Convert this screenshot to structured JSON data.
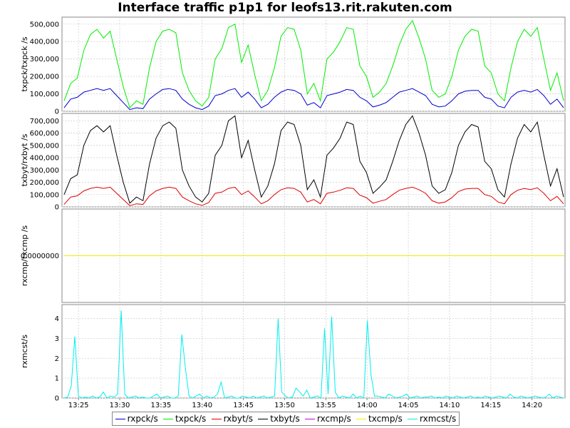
{
  "title": "Interface traffic p1p1 for leofs13.rit.rakuten.com",
  "legend": [
    {
      "name": "rxpck/s",
      "color": "#0000cc"
    },
    {
      "name": "txpck/s",
      "color": "#00ee00"
    },
    {
      "name": "rxbyt/s",
      "color": "#dd0000"
    },
    {
      "name": "txbyt/s",
      "color": "#000000"
    },
    {
      "name": "rxcmp/s",
      "color": "#cc00cc"
    },
    {
      "name": "txcmp/s",
      "color": "#eeee00"
    },
    {
      "name": "rxmcst/s",
      "color": "#00eeee"
    }
  ],
  "chart_data": {
    "type": "line",
    "x_ticks": [
      "13:25",
      "13:30",
      "13:35",
      "13:40",
      "13:45",
      "13:50",
      "13:55",
      "14:00",
      "14:05",
      "14:10",
      "14:15",
      "14:20"
    ],
    "x_range": [
      "13:23",
      "14:24"
    ],
    "grid": true,
    "legend_position": "bottom",
    "panels": [
      {
        "ylabel": "txpck/txpck /s",
        "ylim": [
          0,
          540000
        ],
        "y_ticks": [
          "0",
          "100,000",
          "200,000",
          "300,000",
          "400,000",
          "500,000"
        ],
        "y_tick_values": [
          0,
          100000,
          200000,
          300000,
          400000,
          500000
        ],
        "series": [
          {
            "name": "txpck/s",
            "color": "#00ee00",
            "values": [
              60000,
              160000,
              190000,
              350000,
              440000,
              470000,
              420000,
              460000,
              300000,
              140000,
              20000,
              60000,
              40000,
              250000,
              400000,
              460000,
              470000,
              450000,
              220000,
              120000,
              60000,
              30000,
              80000,
              300000,
              360000,
              480000,
              500000,
              280000,
              380000,
              210000,
              60000,
              120000,
              250000,
              430000,
              480000,
              470000,
              350000,
              100000,
              160000,
              60000,
              300000,
              340000,
              400000,
              480000,
              470000,
              260000,
              200000,
              80000,
              110000,
              160000,
              260000,
              380000,
              470000,
              520000,
              420000,
              300000,
              120000,
              80000,
              100000,
              200000,
              350000,
              430000,
              470000,
              460000,
              260000,
              220000,
              100000,
              60000,
              250000,
              400000,
              470000,
              430000,
              480000,
              300000,
              120000,
              220000,
              60000
            ]
          },
          {
            "name": "rxpck/s",
            "color": "#0000cc",
            "values": [
              20000,
              70000,
              80000,
              110000,
              120000,
              130000,
              120000,
              130000,
              90000,
              50000,
              10000,
              20000,
              15000,
              70000,
              100000,
              125000,
              130000,
              120000,
              70000,
              40000,
              20000,
              10000,
              30000,
              90000,
              100000,
              120000,
              130000,
              80000,
              110000,
              70000,
              20000,
              40000,
              80000,
              110000,
              125000,
              120000,
              100000,
              35000,
              50000,
              20000,
              90000,
              100000,
              110000,
              125000,
              120000,
              80000,
              60000,
              25000,
              35000,
              50000,
              80000,
              110000,
              120000,
              130000,
              110000,
              90000,
              40000,
              25000,
              30000,
              60000,
              100000,
              115000,
              120000,
              120000,
              80000,
              70000,
              30000,
              20000,
              80000,
              110000,
              120000,
              110000,
              125000,
              90000,
              40000,
              70000,
              20000
            ]
          }
        ]
      },
      {
        "ylabel": "txbyt/rxbyt /s",
        "ylim": [
          0,
          760000
        ],
        "y_ticks": [
          "0",
          "100,000",
          "200,000",
          "300,000",
          "400,000",
          "500,000",
          "600,000",
          "700,000"
        ],
        "y_tick_values": [
          0,
          100000,
          200000,
          300000,
          400000,
          500000,
          600000,
          700000
        ],
        "series": [
          {
            "name": "txbyt/s",
            "color": "#000000",
            "values": [
              100000,
              230000,
              260000,
              500000,
              620000,
              660000,
              610000,
              660000,
              420000,
              200000,
              30000,
              80000,
              50000,
              350000,
              560000,
              660000,
              690000,
              640000,
              300000,
              170000,
              80000,
              40000,
              110000,
              420000,
              500000,
              700000,
              740000,
              400000,
              540000,
              300000,
              80000,
              170000,
              350000,
              620000,
              690000,
              670000,
              500000,
              140000,
              220000,
              80000,
              420000,
              480000,
              560000,
              690000,
              670000,
              370000,
              280000,
              110000,
              160000,
              220000,
              370000,
              540000,
              670000,
              740000,
              600000,
              420000,
              170000,
              110000,
              140000,
              280000,
              500000,
              610000,
              670000,
              650000,
              370000,
              310000,
              140000,
              80000,
              350000,
              560000,
              670000,
              610000,
              690000,
              420000,
              170000,
              310000,
              80000
            ]
          },
          {
            "name": "rxbyt/s",
            "color": "#dd0000",
            "values": [
              20000,
              80000,
              90000,
              130000,
              150000,
              160000,
              150000,
              160000,
              110000,
              60000,
              10000,
              25000,
              20000,
              90000,
              130000,
              150000,
              160000,
              150000,
              80000,
              50000,
              25000,
              12000,
              35000,
              110000,
              120000,
              150000,
              160000,
              100000,
              130000,
              80000,
              25000,
              50000,
              100000,
              140000,
              155000,
              150000,
              120000,
              40000,
              60000,
              25000,
              110000,
              120000,
              135000,
              155000,
              150000,
              95000,
              75000,
              30000,
              45000,
              60000,
              100000,
              135000,
              150000,
              160000,
              140000,
              110000,
              50000,
              30000,
              40000,
              75000,
              125000,
              145000,
              150000,
              150000,
              100000,
              85000,
              40000,
              25000,
              100000,
              135000,
              150000,
              140000,
              155000,
              110000,
              50000,
              85000,
              25000
            ]
          }
        ]
      },
      {
        "ylabel": "rxcmp/txcmp /s",
        "ylim": [
          -1,
          1
        ],
        "y_ticks": [
          "0.0000000"
        ],
        "y_tick_values": [
          0
        ],
        "series": [
          {
            "name": "rxcmp/s",
            "color": "#cc00cc",
            "values": [
              0,
              0
            ]
          },
          {
            "name": "txcmp/s",
            "color": "#eeee00",
            "values": [
              0,
              0
            ]
          }
        ]
      },
      {
        "ylabel": "rxmcst/s",
        "ylim": [
          0,
          4.7
        ],
        "y_ticks": [
          "0",
          "1",
          "2",
          "3",
          "4"
        ],
        "y_tick_values": [
          0,
          1,
          2,
          3,
          4
        ],
        "series": [
          {
            "name": "rxmcst/s",
            "color": "#00eeee",
            "values": [
              0,
              0.05,
              0.6,
              3.1,
              0.1,
              0,
              0.05,
              0,
              0.1,
              0,
              0.05,
              0.3,
              0,
              0.1,
              0.05,
              0.2,
              4.4,
              0.2,
              0,
              0.05,
              0.1,
              0,
              0.05,
              0,
              0,
              0.1,
              0.2,
              0,
              0.05,
              0.1,
              0,
              0,
              0.1,
              3.2,
              1.5,
              0.1,
              0,
              0.1,
              0.2,
              0,
              0.1,
              0,
              0.05,
              0.2,
              0.8,
              0,
              0.05,
              0.1,
              0,
              0,
              0.1,
              0.05,
              0,
              0.1,
              0,
              0.05,
              0.1,
              0,
              0.05,
              0.1,
              4.0,
              0.3,
              0.1,
              0,
              0.05,
              0.5,
              0.3,
              0.1,
              0.4,
              0,
              0.05,
              0.1,
              0,
              3.5,
              0.2,
              4.1,
              0.3,
              0,
              0.1,
              0.05,
              0,
              0.2,
              0,
              0.1,
              0,
              3.9,
              1.2,
              0.1,
              0.1,
              0.05,
              0,
              0.2,
              0.1,
              0,
              0.05,
              0.1,
              0.2,
              0,
              0.05,
              0.1,
              0,
              0.05,
              0.05,
              0.1,
              0,
              0.05,
              0,
              0.1,
              0.05,
              0,
              0.1,
              0.05,
              0,
              0.05,
              0.1,
              0,
              0.05,
              0,
              0.1,
              0.05,
              0,
              0.05,
              0.1,
              0.05,
              0,
              0.2,
              0.05,
              0,
              0.1,
              0.05,
              0,
              0.05,
              0.1,
              0.05,
              0,
              0.05,
              0.2,
              0,
              0.1,
              0.05,
              0
            ]
          }
        ]
      }
    ]
  }
}
